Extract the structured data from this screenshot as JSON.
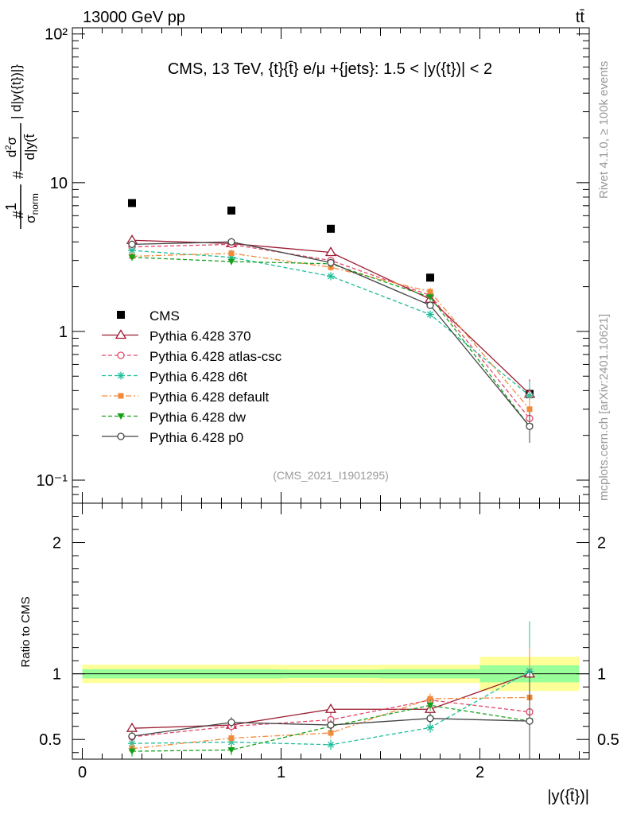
{
  "header": {
    "left": "13000 GeV pp",
    "right": "tt̄"
  },
  "side_text": {
    "rivet": "Rivet 4.1.0, ≥ 100k events",
    "mcplots": "mcplots.cern.ch [arXiv:2401.10621]"
  },
  "colors": {
    "CMS": "#000000",
    "p370": "#9b1b30",
    "atlas": "#e2476a",
    "d6t": "#1fbf9a",
    "default": "#f28a3c",
    "dw": "#16a01a",
    "p0": "#444444",
    "band_outer": "#ffff99",
    "band_inner": "#99ff99"
  },
  "chart_data": [
    {
      "type": "scatter",
      "title": "CMS, 13 TeV, {t}{t̄} e/μ +{jets}: 1.5 < |y({t})| < 2",
      "ylabel": "#frac{1}{σ_norm} #frac{d²σ}{d|y(t̄| d|y({t})|}",
      "yscale": "log",
      "ylim": [
        0.07,
        110
      ],
      "xlim": [
        -0.05,
        2.55
      ],
      "x": [
        0.25,
        0.75,
        1.25,
        1.75,
        2.25
      ],
      "x_bin_edges": [
        0,
        0.5,
        1,
        1.5,
        2,
        2.5
      ],
      "yticks": [
        0.1,
        1,
        10,
        100
      ],
      "ytick_labels": [
        "10⁻¹",
        "1",
        "10",
        "10²"
      ],
      "watermark": "(CMS_2021_I1901295)",
      "series": [
        {
          "name": "CMS",
          "key": "CMS",
          "values": [
            7.3,
            6.5,
            4.9,
            2.3,
            0.38
          ],
          "marker": "square",
          "line": "none"
        },
        {
          "name": "Pythia 6.428 370",
          "key": "p370",
          "values": [
            4.1,
            3.9,
            3.4,
            1.65,
            0.38
          ],
          "marker": "triangle-open",
          "line": "solid"
        },
        {
          "name": "Pythia 6.428 atlas-csc",
          "key": "atlas",
          "values": [
            3.7,
            3.85,
            3.0,
            1.75,
            0.26
          ],
          "marker": "circle-open",
          "line": "dashed"
        },
        {
          "name": "Pythia 6.428 d6t",
          "key": "d6t",
          "values": [
            3.5,
            3.15,
            2.35,
            1.3,
            0.37
          ],
          "marker": "star",
          "line": "dashed"
        },
        {
          "name": "Pythia 6.428 default",
          "key": "default",
          "values": [
            3.2,
            3.35,
            2.7,
            1.85,
            0.3
          ],
          "marker": "square-small",
          "line": "dashdot"
        },
        {
          "name": "Pythia 6.428 dw",
          "key": "dw",
          "values": [
            3.15,
            2.95,
            2.85,
            1.7,
            0.23
          ],
          "marker": "triangle-down",
          "line": "dashed"
        },
        {
          "name": "Pythia 6.428 p0",
          "key": "p0",
          "values": [
            3.85,
            4.0,
            2.9,
            1.5,
            0.23
          ],
          "marker": "circle-open",
          "line": "solid"
        }
      ],
      "legend": "bottom-left"
    },
    {
      "type": "line",
      "ylabel": "Ratio to CMS",
      "xlabel": "|y({t̄})|",
      "ylim": [
        0.35,
        2.3
      ],
      "xlim": [
        -0.05,
        2.55
      ],
      "x": [
        0.25,
        0.75,
        1.25,
        1.75,
        2.25
      ],
      "xticks": [
        0,
        1,
        2
      ],
      "xtick_labels": [
        "0",
        "1",
        "2"
      ],
      "yticks": [
        0.5,
        1,
        2
      ],
      "ytick_labels": [
        "0.5",
        "1",
        "2"
      ],
      "band_inner": [
        0.035,
        0.035,
        0.032,
        0.035,
        0.065
      ],
      "band_outer": [
        0.07,
        0.07,
        0.068,
        0.07,
        0.13
      ],
      "series": [
        {
          "key": "p370",
          "values": [
            0.585,
            0.61,
            0.73,
            0.73,
            1.0
          ]
        },
        {
          "key": "atlas",
          "values": [
            0.52,
            0.6,
            0.65,
            0.8,
            0.71
          ]
        },
        {
          "key": "d6t",
          "values": [
            0.47,
            0.48,
            0.46,
            0.59,
            1.02
          ]
        },
        {
          "key": "default",
          "values": [
            0.43,
            0.51,
            0.55,
            0.81,
            0.82
          ]
        },
        {
          "key": "dw",
          "values": [
            0.41,
            0.42,
            0.6,
            0.76,
            0.64
          ]
        },
        {
          "key": "p0",
          "values": [
            0.525,
            0.63,
            0.61,
            0.66,
            0.64
          ]
        }
      ]
    }
  ]
}
